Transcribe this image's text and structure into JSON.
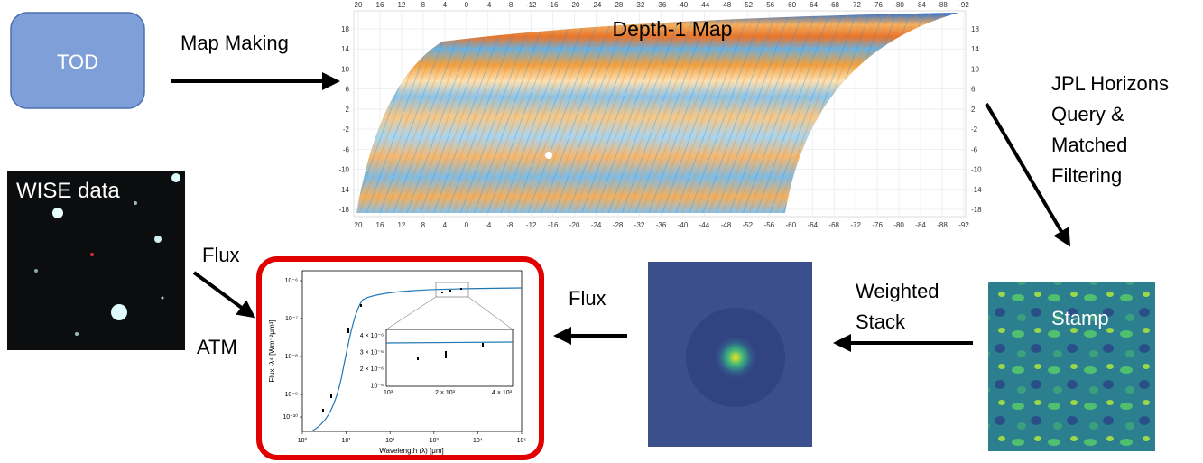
{
  "nodes": {
    "tod": "TOD",
    "depth_map": "Depth-1 Map",
    "wise": "WISE data",
    "stamp": "Stamp"
  },
  "edges": {
    "map_making": "Map Making",
    "jpl": [
      "JPL Horizons",
      "Query &",
      "Matched",
      "Filtering"
    ],
    "flux_wise": "Flux",
    "atm": "ATM",
    "flux_stack": "Flux",
    "weighted": [
      "Weighted",
      "Stack"
    ]
  },
  "map_axes": {
    "x_ticks": [
      "20",
      "16",
      "12",
      "8",
      "4",
      "0",
      "-4",
      "-8",
      "-12",
      "-16",
      "-20",
      "-24",
      "-28",
      "-32",
      "-36",
      "-40",
      "-44",
      "-48",
      "-52",
      "-56",
      "-60",
      "-64",
      "-68",
      "-72",
      "-76",
      "-80",
      "-84",
      "-88",
      "-92"
    ],
    "y_ticks": [
      "18",
      "14",
      "10",
      "6",
      "2",
      "-2",
      "-6",
      "-10",
      "-14",
      "-18"
    ]
  },
  "sed_plot": {
    "xlabel": "Wavelength (λ) [μm]",
    "ylabel": "Flux ·λ⁴ [Wm⁻²μm³]",
    "xticks": [
      "10⁰",
      "10¹",
      "10²",
      "10³",
      "10⁴",
      "10⁵"
    ],
    "yticks": [
      "10⁻⁶",
      "10⁻⁷",
      "10⁻⁸",
      "10⁻⁹",
      "10⁻¹⁰"
    ],
    "inset_yticks": [
      "4 × 10⁻⁶",
      "3 × 10⁻⁶",
      "2 × 10⁻⁶",
      "10⁻⁶"
    ],
    "inset_xticks": [
      "10³",
      "2 × 10³",
      "4 × 10³"
    ]
  }
}
